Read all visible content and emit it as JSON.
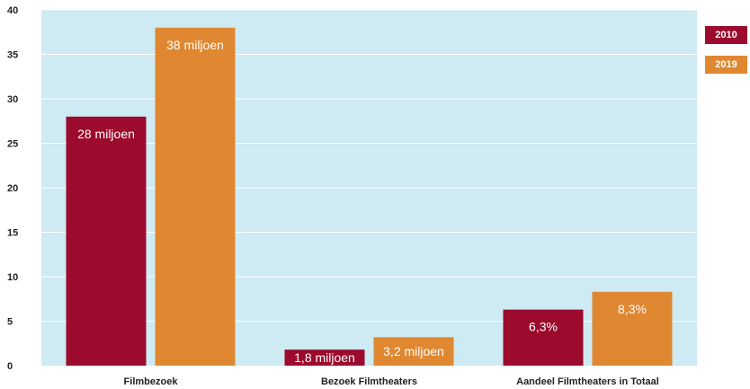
{
  "colors": {
    "plot_bg": "#ceeaf2",
    "grid": "#ffffff",
    "s2010": "#9c0a2d",
    "s2019": "#df8831"
  },
  "legend": {
    "s2010": "2010",
    "s2019": "2019"
  },
  "chart_data": {
    "type": "bar",
    "categories": [
      "Filmbezoek",
      "Bezoek Filmtheaters",
      "Aandeel Filmtheaters in Totaal"
    ],
    "series": [
      {
        "name": "2010",
        "values": [
          28,
          1.8,
          6.3
        ],
        "labels": [
          "28 miljoen",
          "1,8 miljoen",
          "6,3%"
        ]
      },
      {
        "name": "2019",
        "values": [
          38,
          3.2,
          8.3
        ],
        "labels": [
          "38 miljoen",
          "3,2 miljoen",
          "8,3%"
        ]
      }
    ],
    "yticks": [
      "0",
      "5",
      "10",
      "15",
      "20",
      "25",
      "30",
      "35",
      "40"
    ],
    "ylim": [
      0,
      40
    ],
    "grid": true,
    "legend_position": "top-right"
  }
}
